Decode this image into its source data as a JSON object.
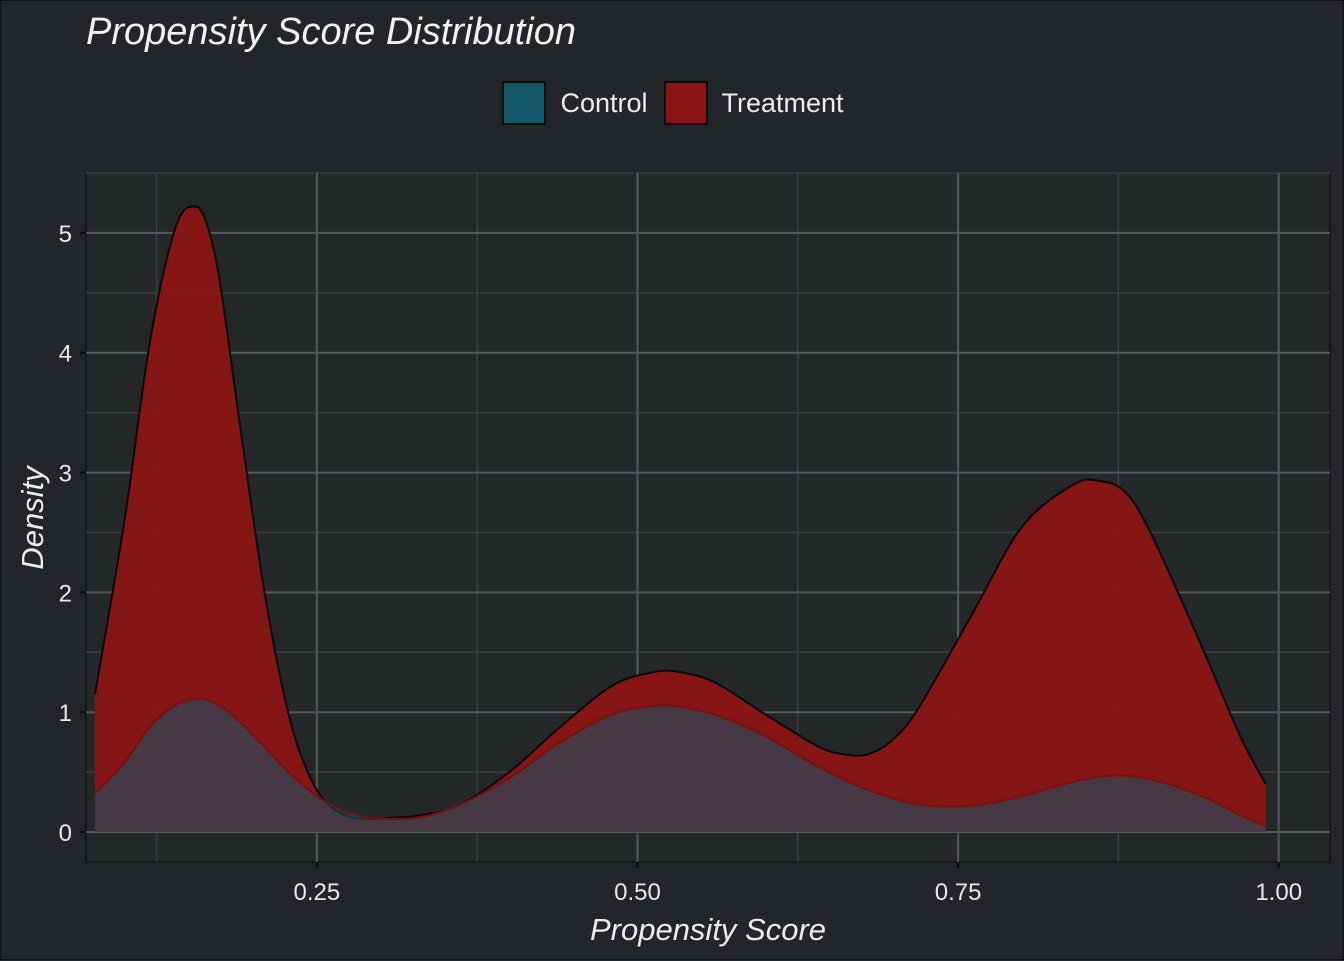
{
  "chart_data": {
    "type": "area",
    "title": "Propensity Score Distribution",
    "xlabel": "Propensity Score",
    "ylabel": "Density",
    "xlim": [
      0.07,
      1.04
    ],
    "ylim": [
      -0.25,
      5.5
    ],
    "x_ticks": [
      0.25,
      0.5,
      0.75,
      1.0
    ],
    "x_tick_labels": [
      "0.25",
      "0.50",
      "0.75",
      "1.00"
    ],
    "y_ticks": [
      0,
      1,
      2,
      3,
      4,
      5
    ],
    "y_tick_labels": [
      "0",
      "1",
      "2",
      "3",
      "4",
      "5"
    ],
    "grid": true,
    "legend_position": "top",
    "series": [
      {
        "name": "Control",
        "color": "#13576a",
        "x": [
          0.077,
          0.1,
          0.12,
          0.14,
          0.155,
          0.165,
          0.175,
          0.19,
          0.21,
          0.23,
          0.25,
          0.27,
          0.29,
          0.31,
          0.33,
          0.36,
          0.4,
          0.44,
          0.48,
          0.51,
          0.53,
          0.56,
          0.6,
          0.64,
          0.68,
          0.72,
          0.76,
          0.8,
          0.84,
          0.87,
          0.9,
          0.94,
          0.97,
          0.99
        ],
        "y": [
          0.32,
          0.58,
          0.88,
          1.06,
          1.11,
          1.1,
          1.05,
          0.92,
          0.7,
          0.48,
          0.3,
          0.18,
          0.12,
          0.11,
          0.12,
          0.22,
          0.45,
          0.75,
          0.98,
          1.05,
          1.05,
          0.98,
          0.8,
          0.55,
          0.35,
          0.23,
          0.22,
          0.3,
          0.42,
          0.47,
          0.44,
          0.3,
          0.14,
          0.05
        ]
      },
      {
        "name": "Treatment",
        "color": "#8c1414",
        "x": [
          0.077,
          0.1,
          0.12,
          0.14,
          0.155,
          0.165,
          0.175,
          0.19,
          0.21,
          0.23,
          0.25,
          0.27,
          0.29,
          0.31,
          0.33,
          0.36,
          0.4,
          0.44,
          0.48,
          0.51,
          0.53,
          0.56,
          0.6,
          0.64,
          0.66,
          0.68,
          0.7,
          0.72,
          0.76,
          0.8,
          0.84,
          0.86,
          0.88,
          0.9,
          0.94,
          0.97,
          0.99
        ],
        "y": [
          1.15,
          2.6,
          4.1,
          5.05,
          5.22,
          5.05,
          4.55,
          3.4,
          1.95,
          0.9,
          0.35,
          0.15,
          0.11,
          0.12,
          0.14,
          0.22,
          0.5,
          0.88,
          1.22,
          1.33,
          1.34,
          1.25,
          0.98,
          0.72,
          0.65,
          0.65,
          0.78,
          1.05,
          1.8,
          2.55,
          2.9,
          2.93,
          2.84,
          2.5,
          1.55,
          0.8,
          0.4
        ]
      }
    ]
  }
}
